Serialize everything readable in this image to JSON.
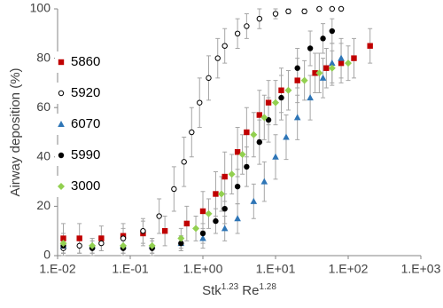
{
  "chart_data": {
    "type": "scatter",
    "ylabel": "Airway deposition (%)",
    "xlabel": {
      "base1": "Stk",
      "exp1": "1.23",
      "base2": "Re",
      "exp2": "1.28"
    },
    "xscale": "log",
    "xlim": [
      0.01,
      1000
    ],
    "xticks": [
      {
        "value": 0.01,
        "label": "1.E-02"
      },
      {
        "value": 0.1,
        "label": "1.E-01"
      },
      {
        "value": 1,
        "label": "1.E+00"
      },
      {
        "value": 10,
        "label": "1.E+01"
      },
      {
        "value": 100,
        "label": "1.E+02"
      },
      {
        "value": 1000,
        "label": "1.E+03"
      }
    ],
    "ylim": [
      0,
      100
    ],
    "yticks": [
      0,
      20,
      40,
      60,
      80,
      100
    ],
    "legend": "left",
    "series": [
      {
        "name": "5860",
        "color": "#c00000",
        "marker": "square",
        "x": [
          0.012,
          0.02,
          0.04,
          0.08,
          0.15,
          0.3,
          0.6,
          1,
          1.5,
          2,
          3,
          4,
          6,
          8,
          12,
          20,
          35,
          50,
          80,
          120,
          200
        ],
        "values": [
          7,
          7,
          7,
          8,
          9,
          10,
          13,
          18,
          25,
          32,
          42,
          50,
          57,
          62,
          67,
          71,
          74,
          76,
          78,
          80,
          85
        ],
        "errors": [
          6,
          6,
          5,
          5,
          5,
          6,
          7,
          8,
          9,
          10,
          10,
          10,
          10,
          9,
          9,
          9,
          8,
          8,
          8,
          8,
          7
        ]
      },
      {
        "name": "5920",
        "color": "#000000",
        "marker": "circle-open",
        "x": [
          0.012,
          0.02,
          0.04,
          0.08,
          0.15,
          0.25,
          0.4,
          0.55,
          0.7,
          0.9,
          1.2,
          1.6,
          2,
          3,
          4,
          6,
          10,
          15,
          25,
          40,
          60,
          80
        ],
        "values": [
          3,
          4,
          5,
          7,
          10,
          16,
          27,
          38,
          50,
          62,
          72,
          80,
          85,
          90,
          93,
          96,
          98,
          99,
          99,
          100,
          100,
          100
        ],
        "errors": [
          3,
          3,
          3,
          4,
          5,
          7,
          9,
          10,
          10,
          10,
          9,
          8,
          7,
          6,
          5,
          4,
          2,
          1,
          1,
          0,
          0,
          0
        ]
      },
      {
        "name": "6070",
        "color": "#2e75b6",
        "marker": "triangle",
        "x": [
          0.012,
          0.03,
          0.08,
          0.2,
          0.5,
          1,
          2,
          3,
          5,
          7,
          10,
          14,
          20,
          30,
          45,
          60,
          80
        ],
        "values": [
          4,
          4,
          4,
          4,
          5,
          7,
          11,
          15,
          22,
          30,
          40,
          48,
          56,
          64,
          72,
          78,
          80
        ],
        "errors": [
          3,
          3,
          3,
          3,
          3,
          4,
          5,
          6,
          7,
          8,
          9,
          9,
          9,
          9,
          8,
          8,
          8
        ]
      },
      {
        "name": "5990",
        "color": "#000000",
        "marker": "circle",
        "x": [
          0.012,
          0.03,
          0.08,
          0.2,
          0.5,
          1,
          1.5,
          2,
          3,
          4,
          6,
          8,
          12,
          20,
          30,
          45,
          60
        ],
        "values": [
          4,
          3,
          3,
          3,
          5,
          9,
          14,
          19,
          28,
          36,
          46,
          55,
          64,
          76,
          84,
          88,
          91
        ],
        "errors": [
          3,
          3,
          3,
          3,
          3,
          4,
          5,
          6,
          7,
          8,
          9,
          9,
          9,
          8,
          7,
          6,
          5
        ]
      },
      {
        "name": "3000",
        "color": "#92d050",
        "marker": "diamond",
        "x": [
          0.012,
          0.03,
          0.08,
          0.2,
          0.5,
          0.8,
          1.2,
          1.8,
          2.5,
          3.5,
          5,
          7,
          10,
          15,
          25,
          40,
          60,
          100
        ],
        "values": [
          5,
          4,
          4,
          4,
          7,
          11,
          17,
          25,
          33,
          41,
          49,
          56,
          62,
          67,
          71,
          74,
          76,
          78
        ],
        "errors": [
          4,
          3,
          3,
          3,
          4,
          5,
          6,
          7,
          8,
          8,
          9,
          9,
          9,
          8,
          8,
          8,
          7,
          7
        ]
      }
    ]
  }
}
